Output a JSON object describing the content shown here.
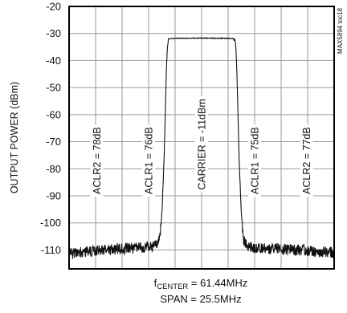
{
  "part_id": "MAX5894 toc18",
  "chart_data": {
    "type": "line",
    "ylabel": "OUTPUT POWER (dBm)",
    "ylim": [
      -117,
      -20
    ],
    "yticks": [
      -20,
      -30,
      -40,
      -50,
      -60,
      -70,
      -80,
      -90,
      -100,
      -110
    ],
    "xlim": [
      -12.75,
      12.75
    ],
    "x_unit": "MHz offset from 61.44MHz",
    "grid": true,
    "footnote": {
      "center_prefix": "f",
      "center_sub": "CENTER",
      "center_value": " = 61.44MHz",
      "span": "SPAN = 25.5MHz"
    },
    "annotations": [
      {
        "text": "ACLR2 = 78dB",
        "x": -10.1,
        "y": -77
      },
      {
        "text": "ACLR1 = 76dB",
        "x": -5.1,
        "y": -77
      },
      {
        "text": "CARRIER = -11dBm",
        "x": 0,
        "y": -71
      },
      {
        "text": "ACLR1 = 75dB",
        "x": 5.1,
        "y": -77
      },
      {
        "text": "ACLR2 = 77dB",
        "x": 10.1,
        "y": -77
      }
    ],
    "series": [
      {
        "values": [
          [
            -12.75,
            -111.5
          ],
          [
            -11,
            -110.5
          ],
          [
            -9,
            -110
          ],
          [
            -7,
            -109.5
          ],
          [
            -5,
            -109
          ],
          [
            -4.3,
            -108
          ],
          [
            -4.05,
            -106
          ],
          [
            -3.95,
            -103
          ],
          [
            -3.8,
            -95
          ],
          [
            -3.7,
            -85
          ],
          [
            -3.6,
            -75
          ],
          [
            -3.5,
            -60
          ],
          [
            -3.4,
            -45
          ],
          [
            -3.3,
            -35
          ],
          [
            -3.2,
            -32.5
          ],
          [
            -3.0,
            -31.8
          ],
          [
            0,
            -31.7
          ],
          [
            3.0,
            -31.8
          ],
          [
            3.2,
            -32.5
          ],
          [
            3.3,
            -35
          ],
          [
            3.4,
            -45
          ],
          [
            3.5,
            -60
          ],
          [
            3.6,
            -75
          ],
          [
            3.7,
            -85
          ],
          [
            3.8,
            -95
          ],
          [
            3.95,
            -103
          ],
          [
            4.05,
            -106
          ],
          [
            4.3,
            -108
          ],
          [
            5,
            -109
          ],
          [
            7,
            -109.5
          ],
          [
            9,
            -110
          ],
          [
            11,
            -110.5
          ],
          [
            12.75,
            -111
          ]
        ]
      }
    ]
  }
}
